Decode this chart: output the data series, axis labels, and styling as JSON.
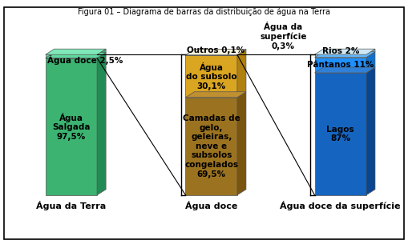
{
  "title": "Figura 01 – Diagrama de barras da distribuição de água na Terra",
  "chart1": {
    "label": "Água da Terra",
    "segments": [
      {
        "label": "Água doce 2,5%",
        "value": 2.5,
        "color": "#5fd8a0",
        "top_color": "#7fe8b8",
        "side_color": "#3aaa72"
      },
      {
        "label": "Água\nSalgada\n97,5%",
        "value": 97.5,
        "color": "#3cb371",
        "top_color": "#5fd8a0",
        "side_color": "#228b55"
      }
    ]
  },
  "chart2": {
    "label": "Água doce",
    "segments": [
      {
        "label": "Outros 0,1%",
        "value": 0.1,
        "color": "#f0e8c8",
        "top_color": "#f8f4e0",
        "side_color": "#c8c0a0"
      },
      {
        "label": "Água\ndo subsolo\n30,1%",
        "value": 30.1,
        "color": "#daa520",
        "top_color": "#f0c040",
        "side_color": "#b08010"
      },
      {
        "label": "Camadas de\ngelo,\ngeleiras,\nneve e\nsubsolos\ncongelados\n69,5%",
        "value": 69.5,
        "color": "#9b7320",
        "top_color": "#c09030",
        "side_color": "#7a5510"
      }
    ]
  },
  "chart3": {
    "label": "Água doce da superfície",
    "annotation": "Água da\nsuperfície\n0,3%",
    "segments": [
      {
        "label": "Rios 2%",
        "value": 2.0,
        "color": "#add8e6",
        "top_color": "#cce8f4",
        "side_color": "#8ab8c8"
      },
      {
        "label": "Pântanos 11%",
        "value": 11.0,
        "color": "#1e90ff",
        "top_color": "#60b8ff",
        "side_color": "#1070cc"
      },
      {
        "label": "Lagos\n87%",
        "value": 87.0,
        "color": "#1565c0",
        "top_color": "#3080d8",
        "side_color": "#0a4590"
      }
    ]
  },
  "figure_bg": "#ffffff",
  "font_size": 7.5,
  "title_font_size": 7
}
